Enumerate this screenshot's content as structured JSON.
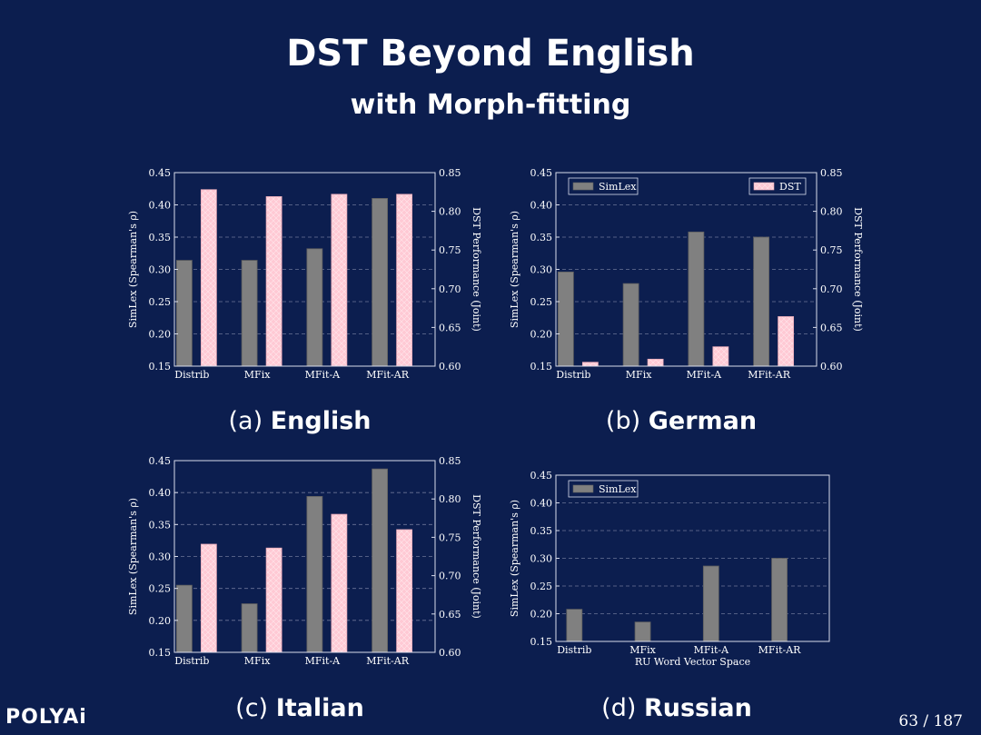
{
  "slide": {
    "title": "DST Beyond English",
    "subtitle": "with Morph-fitting",
    "logo": "POLYAi",
    "page": "63 / 187"
  },
  "colors": {
    "background": "#0c1e4f",
    "simlex": "#808080",
    "dst": "#ffc9d4",
    "grid": "#6b7598"
  },
  "chart_data": [
    {
      "type": "bar",
      "caption_prefix": "(a)",
      "caption_name": "English",
      "categories": [
        "Distrib",
        "MFix",
        "MFit-A",
        "MFit-AR"
      ],
      "left_axis": {
        "label": "SimLex (Spearman's ρ)",
        "ylim": [
          0.15,
          0.45
        ],
        "ticks": [
          "0.15",
          "0.20",
          "0.25",
          "0.30",
          "0.35",
          "0.40",
          "0.45"
        ]
      },
      "right_axis": {
        "label": "DST Performance (Joint)",
        "ylim": [
          0.6,
          0.85
        ],
        "ticks": [
          "0.60",
          "0.65",
          "0.70",
          "0.75",
          "0.80",
          "0.85"
        ]
      },
      "series": [
        {
          "name": "SimLex",
          "axis": "left",
          "values": [
            0.314,
            0.314,
            0.332,
            0.41
          ]
        },
        {
          "name": "DST",
          "axis": "right",
          "values": [
            0.828,
            0.819,
            0.822,
            0.822
          ]
        }
      ],
      "legend": []
    },
    {
      "type": "bar",
      "caption_prefix": "(b)",
      "caption_name": "German",
      "categories": [
        "Distrib",
        "MFix",
        "MFit-A",
        "MFit-AR"
      ],
      "left_axis": {
        "label": "SimLex (Spearman's ρ)",
        "ylim": [
          0.15,
          0.45
        ],
        "ticks": [
          "0.15",
          "0.20",
          "0.25",
          "0.30",
          "0.35",
          "0.40",
          "0.45"
        ]
      },
      "right_axis": {
        "label": "DST Performance (Joint)",
        "ylim": [
          0.6,
          0.85
        ],
        "ticks": [
          "0.60",
          "0.65",
          "0.70",
          "0.75",
          "0.80",
          "0.85"
        ]
      },
      "series": [
        {
          "name": "SimLex",
          "axis": "left",
          "values": [
            0.296,
            0.278,
            0.358,
            0.35
          ]
        },
        {
          "name": "DST",
          "axis": "right",
          "values": [
            0.605,
            0.609,
            0.625,
            0.664
          ]
        }
      ],
      "legend": [
        {
          "label": "SimLex",
          "series": 0,
          "placement": "top-left"
        },
        {
          "label": "DST",
          "series": 1,
          "placement": "top-right"
        }
      ]
    },
    {
      "type": "bar",
      "caption_prefix": "(c)",
      "caption_name": "Italian",
      "categories": [
        "Distrib",
        "MFix",
        "MFit-A",
        "MFit-AR"
      ],
      "left_axis": {
        "label": "SimLex (Spearman's ρ)",
        "ylim": [
          0.15,
          0.45
        ],
        "ticks": [
          "0.15",
          "0.20",
          "0.25",
          "0.30",
          "0.35",
          "0.40",
          "0.45"
        ]
      },
      "right_axis": {
        "label": "DST Performance (Joint)",
        "ylim": [
          0.6,
          0.85
        ],
        "ticks": [
          "0.60",
          "0.65",
          "0.70",
          "0.75",
          "0.80",
          "0.85"
        ]
      },
      "series": [
        {
          "name": "SimLex",
          "axis": "left",
          "values": [
            0.255,
            0.226,
            0.394,
            0.437
          ]
        },
        {
          "name": "DST",
          "axis": "right",
          "values": [
            0.741,
            0.736,
            0.78,
            0.76
          ]
        }
      ],
      "legend": []
    },
    {
      "type": "bar",
      "caption_prefix": "(d)",
      "caption_name": "Russian",
      "categories": [
        "Distrib",
        "MFix",
        "MFit-A",
        "MFit-AR"
      ],
      "xlabel": "RU Word Vector Space",
      "left_axis": {
        "label": "SimLex (Spearman's ρ)",
        "ylim": [
          0.15,
          0.45
        ],
        "ticks": [
          "0.15",
          "0.20",
          "0.25",
          "0.30",
          "0.35",
          "0.40",
          "0.45"
        ]
      },
      "series": [
        {
          "name": "SimLex",
          "axis": "left",
          "values": [
            0.208,
            0.185,
            0.286,
            0.3
          ]
        }
      ],
      "legend": [
        {
          "label": "SimLex",
          "series": 0,
          "placement": "top-left"
        }
      ]
    }
  ]
}
